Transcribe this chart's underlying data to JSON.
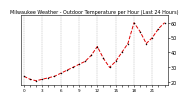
{
  "title": "Milwaukee Weather - Outdoor Temperature per Hour (Last 24 Hours)",
  "hours": [
    0,
    1,
    2,
    3,
    4,
    5,
    6,
    7,
    8,
    9,
    10,
    11,
    12,
    13,
    14,
    15,
    16,
    17,
    18,
    19,
    20,
    21,
    22,
    23
  ],
  "temps": [
    24,
    22,
    21,
    22,
    23,
    24,
    26,
    28,
    30,
    32,
    34,
    38,
    44,
    36,
    30,
    34,
    40,
    46,
    60,
    54,
    46,
    50,
    56,
    60
  ],
  "line_color": "#dd0000",
  "marker_color": "#000000",
  "background_color": "#ffffff",
  "grid_color": "#888888",
  "ylim": [
    18,
    65
  ],
  "ytick_values": [
    20,
    30,
    40,
    50,
    60
  ],
  "ytick_labels": [
    "20",
    "30",
    "40",
    "50",
    "60"
  ],
  "xtick_positions": [
    0,
    1,
    2,
    3,
    4,
    5,
    6,
    7,
    8,
    9,
    10,
    11,
    12,
    13,
    14,
    15,
    16,
    17,
    18,
    19,
    20,
    21,
    22,
    23
  ],
  "ylabel_fontsize": 3.5,
  "xlabel_fontsize": 3.0,
  "title_fontsize": 3.5,
  "linewidth": 0.7,
  "markersize": 1.5
}
